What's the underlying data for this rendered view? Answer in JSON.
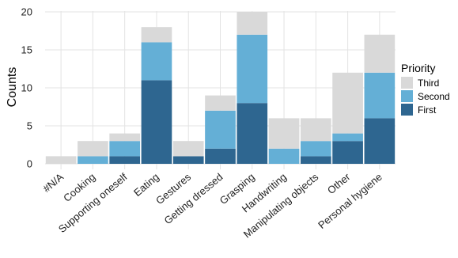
{
  "chart_data": {
    "type": "bar",
    "stacked": true,
    "categories": [
      "#N/A",
      "Cooking",
      "Supporting oneself",
      "Eating",
      "Gestures",
      "Getting dressed",
      "Grasping",
      "Handwriting",
      "Manipulating objects",
      "Other",
      "Personal hygiene"
    ],
    "series": [
      {
        "name": "First",
        "color": "#2e6690",
        "values": [
          0,
          0,
          1,
          11,
          1,
          2,
          8,
          0,
          1,
          3,
          6
        ]
      },
      {
        "name": "Second",
        "color": "#64afd6",
        "values": [
          0,
          1,
          2,
          5,
          0,
          5,
          9,
          2,
          2,
          1,
          6
        ]
      },
      {
        "name": "Third",
        "color": "#d9d9d9",
        "values": [
          1,
          2,
          1,
          2,
          2,
          2,
          3,
          4,
          3,
          8,
          5
        ]
      }
    ],
    "ylabel": "Counts",
    "xlabel": "",
    "ylim": [
      0,
      20
    ],
    "yticks": [
      0,
      5,
      10,
      15,
      20
    ],
    "grid": true,
    "legend": {
      "title": "Priority",
      "placement": "right",
      "order": [
        "Third",
        "Second",
        "First"
      ]
    }
  }
}
